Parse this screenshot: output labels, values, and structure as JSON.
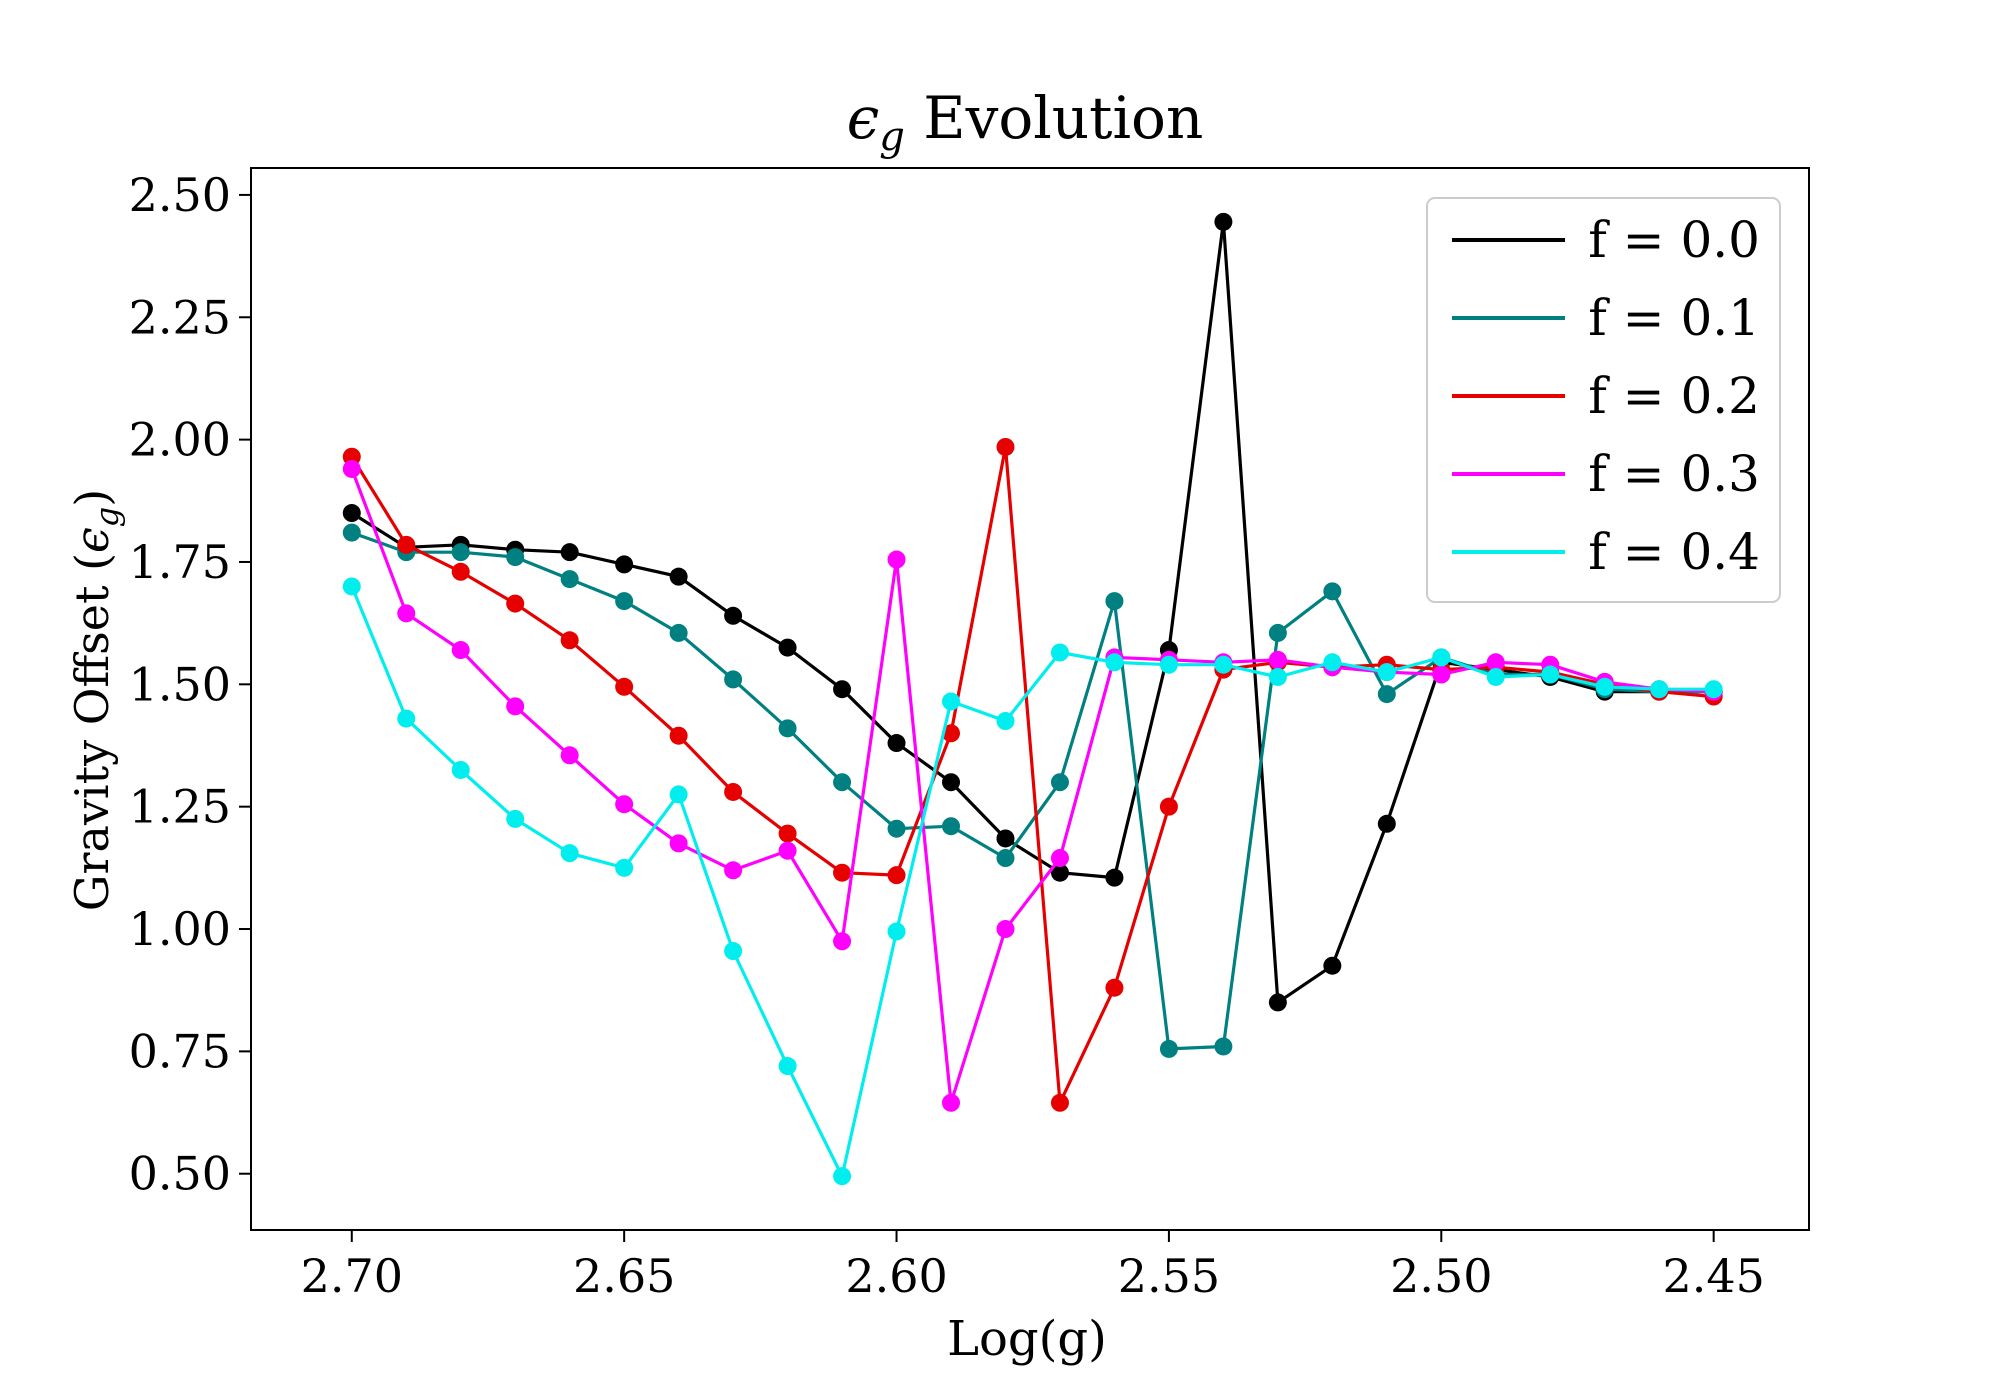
{
  "chart_data": {
    "type": "line",
    "title": "ϵg Evolution",
    "title_symbol": "ϵ",
    "title_subscript": "g",
    "title_rest": " Evolution",
    "xlabel": "Log(g)",
    "ylabel": "Gravity Offset (ϵg)",
    "ylabel_main": "Gravity Offset (",
    "ylabel_symbol": "ϵ",
    "ylabel_subscript": "g",
    "ylabel_close": ")",
    "xlim": [
      2.7185,
      2.4325
    ],
    "ylim": [
      0.385,
      2.555
    ],
    "x_inverted": true,
    "xticks": [
      2.7,
      2.65,
      2.6,
      2.55,
      2.5,
      2.45
    ],
    "xtick_labels": [
      "2.70",
      "2.65",
      "2.60",
      "2.55",
      "2.50",
      "2.45"
    ],
    "yticks": [
      0.5,
      0.75,
      1.0,
      1.25,
      1.5,
      1.75,
      2.0,
      2.25,
      2.5
    ],
    "ytick_labels": [
      "0.50",
      "0.75",
      "1.00",
      "1.25",
      "1.50",
      "1.75",
      "2.00",
      "2.25",
      "2.50"
    ],
    "grid": false,
    "legend_position": "top-right",
    "x": [
      2.7,
      2.69,
      2.68,
      2.67,
      2.66,
      2.65,
      2.64,
      2.63,
      2.62,
      2.61,
      2.6,
      2.59,
      2.58,
      2.57,
      2.56,
      2.55,
      2.54,
      2.53,
      2.52,
      2.51,
      2.5,
      2.49,
      2.48,
      2.47,
      2.46,
      2.45
    ],
    "series": [
      {
        "name": "f = 0.0",
        "color": "#000000",
        "values": [
          1.85,
          1.78,
          1.785,
          1.775,
          1.77,
          1.745,
          1.72,
          1.64,
          1.575,
          1.49,
          1.38,
          1.3,
          1.185,
          1.115,
          1.105,
          1.57,
          2.445,
          0.85,
          0.925,
          1.215,
          1.545,
          1.53,
          1.515,
          1.485,
          1.485,
          1.485
        ]
      },
      {
        "name": "f = 0.1",
        "color": "#008080",
        "values": [
          1.81,
          1.77,
          1.77,
          1.76,
          1.715,
          1.67,
          1.605,
          1.51,
          1.41,
          1.3,
          1.205,
          1.21,
          1.145,
          1.3,
          1.67,
          0.755,
          0.76,
          1.605,
          1.69,
          1.48,
          1.555,
          1.52,
          1.52,
          1.49,
          1.485,
          1.485
        ]
      },
      {
        "name": "f = 0.2",
        "color": "#e60000",
        "values": [
          1.965,
          1.785,
          1.73,
          1.665,
          1.59,
          1.495,
          1.395,
          1.28,
          1.195,
          1.115,
          1.11,
          1.4,
          1.985,
          0.645,
          0.88,
          1.25,
          1.53,
          1.545,
          1.535,
          1.54,
          1.53,
          1.535,
          1.525,
          1.5,
          1.485,
          1.475
        ]
      },
      {
        "name": "f = 0.3",
        "color": "#ff00ff",
        "values": [
          1.94,
          1.645,
          1.57,
          1.455,
          1.355,
          1.255,
          1.175,
          1.12,
          1.16,
          0.975,
          1.755,
          0.645,
          1.0,
          1.145,
          1.555,
          1.55,
          1.545,
          1.55,
          1.535,
          1.525,
          1.52,
          1.545,
          1.54,
          1.505,
          1.49,
          1.485
        ]
      },
      {
        "name": "f = 0.4",
        "color": "#00eeee",
        "values": [
          1.7,
          1.43,
          1.325,
          1.225,
          1.155,
          1.125,
          1.275,
          0.955,
          0.72,
          0.495,
          0.995,
          1.465,
          1.425,
          1.565,
          1.545,
          1.54,
          1.54,
          1.515,
          1.545,
          1.525,
          1.555,
          1.515,
          1.52,
          1.495,
          1.49,
          1.49
        ]
      }
    ]
  }
}
